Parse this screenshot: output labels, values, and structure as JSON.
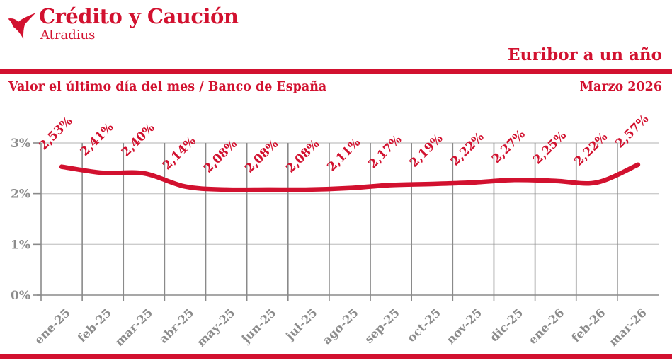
{
  "brand": {
    "logo_text": "Crédito y Caución",
    "logo_subtext": "Atradius",
    "logo_icon": "atradius-bird-icon"
  },
  "header": {
    "title": "Euribor a un año",
    "subtitle": "Valor el último día del mes / Banco de España",
    "period": "Marzo 2026"
  },
  "colors": {
    "accent_red": "#d2112f",
    "axis_grey": "#8a8a8a",
    "grid_light": "#cccccc",
    "label_grey": "#8c8c8c"
  },
  "chart_data": {
    "type": "line",
    "title": "Euribor a un año",
    "subtitle": "Valor el último día del mes / Banco de España",
    "categories": [
      "ene-25",
      "feb-25",
      "mar-25",
      "abr-25",
      "may-25",
      "jun-25",
      "jul-25",
      "ago-25",
      "sep-25",
      "oct-25",
      "nov-25",
      "dic-25",
      "ene-26",
      "feb-26",
      "mar-26"
    ],
    "values": [
      2.53,
      2.41,
      2.4,
      2.14,
      2.08,
      2.08,
      2.08,
      2.11,
      2.17,
      2.19,
      2.22,
      2.27,
      2.25,
      2.22,
      2.57
    ],
    "point_labels": [
      "2,53%",
      "2,41%",
      "2,40%",
      "2,14%",
      "2,08%",
      "2,08%",
      "2,08%",
      "2,11%",
      "2,17%",
      "2,19%",
      "2,22%",
      "2,27%",
      "2,25%",
      "2,22%",
      "2,57%"
    ],
    "xlabel": "",
    "ylabel": "",
    "y_ticks": [
      "0%",
      "1%",
      "2%",
      "3%"
    ],
    "ylim": [
      0,
      3
    ],
    "grid": true,
    "legend": "none",
    "line_color": "#d2112f"
  }
}
